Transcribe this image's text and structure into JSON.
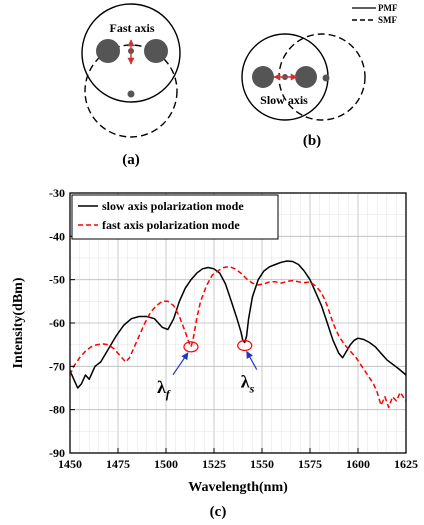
{
  "panels": {
    "a": {
      "caption": "(a)",
      "axis_label": "Fast axis"
    },
    "b": {
      "caption": "(b)",
      "axis_label": "Slow axis"
    }
  },
  "diagram_legend": [
    {
      "label": "PMF",
      "style": "solid"
    },
    {
      "label": "SMF",
      "style": "dashed"
    }
  ],
  "colors": {
    "slow": "#000000",
    "fast": "#ff0000",
    "arrow": "#cc3333",
    "core": "#555555",
    "annotation": "#2233cc"
  },
  "chart_data": {
    "type": "line",
    "caption": "(c)",
    "xlabel": "Wavelength(nm)",
    "ylabel": "Intensity(dBm)",
    "xlim": [
      1450,
      1625
    ],
    "ylim": [
      -90,
      -30
    ],
    "xticks": [
      1450,
      1475,
      1500,
      1525,
      1550,
      1575,
      1600,
      1625
    ],
    "yticks": [
      -90,
      -80,
      -70,
      -60,
      -50,
      -40,
      -30
    ],
    "grid": true,
    "legend_position": "top-left",
    "annotations": [
      {
        "label_main": "λ",
        "label_sub": "f",
        "x": 1513,
        "y": -65.5
      },
      {
        "label_main": "λ",
        "label_sub": "s",
        "x": 1541,
        "y": -65.2
      }
    ],
    "series": [
      {
        "name": "slow axis polarization mode",
        "style": "solid",
        "color": "#000000",
        "x": [
          1450,
          1452,
          1454,
          1456,
          1458,
          1460,
          1463,
          1466,
          1470,
          1474,
          1478,
          1482,
          1486,
          1490,
          1494,
          1498,
          1501,
          1504,
          1507,
          1510,
          1513,
          1516,
          1519,
          1522,
          1525,
          1528,
          1531,
          1534,
          1537,
          1539,
          1540,
          1541,
          1542,
          1543,
          1545,
          1548,
          1551,
          1554,
          1557,
          1560,
          1563,
          1566,
          1569,
          1572,
          1575,
          1578,
          1581,
          1584,
          1587,
          1590,
          1592,
          1594,
          1596,
          1598,
          1600,
          1603,
          1606,
          1609,
          1612,
          1615,
          1618,
          1621,
          1625
        ],
        "y": [
          -71,
          -73,
          -75,
          -74,
          -72,
          -73,
          -70,
          -69,
          -66,
          -63,
          -60.5,
          -59,
          -58.5,
          -58.5,
          -59,
          -61,
          -61.5,
          -59,
          -55,
          -52,
          -50,
          -48.5,
          -47.5,
          -47.2,
          -47.5,
          -48.5,
          -51,
          -55,
          -59,
          -62,
          -64,
          -64.5,
          -63,
          -59,
          -54,
          -50,
          -48,
          -47,
          -46.5,
          -46,
          -45.7,
          -45.8,
          -46.5,
          -48,
          -50,
          -53,
          -56,
          -60,
          -64,
          -67,
          -68,
          -66.5,
          -65,
          -64,
          -63.5,
          -63.8,
          -64.5,
          -65.5,
          -67,
          -68.5,
          -69.5,
          -70.5,
          -72
        ]
      },
      {
        "name": "fast axis polarization mode",
        "style": "dashed",
        "color": "#ff0000",
        "x": [
          1450,
          1452,
          1455,
          1458,
          1461,
          1464,
          1467,
          1470,
          1473,
          1476,
          1479,
          1481,
          1483,
          1486,
          1489,
          1492,
          1495,
          1498,
          1501,
          1504,
          1507,
          1510,
          1512,
          1513,
          1514,
          1516,
          1518,
          1521,
          1524,
          1527,
          1530,
          1533,
          1536,
          1539,
          1542,
          1545,
          1548,
          1551,
          1554,
          1557,
          1560,
          1563,
          1566,
          1569,
          1572,
          1575,
          1578,
          1581,
          1584,
          1587,
          1590,
          1593,
          1596,
          1599,
          1602,
          1605,
          1608,
          1610,
          1612,
          1614,
          1616,
          1618,
          1620,
          1622,
          1625
        ],
        "y": [
          -72,
          -70,
          -68,
          -66.5,
          -65.5,
          -65,
          -64.8,
          -65,
          -66,
          -67.5,
          -69,
          -68,
          -66,
          -63,
          -60,
          -57.5,
          -56,
          -55,
          -55,
          -56,
          -58.5,
          -62,
          -64.5,
          -65.5,
          -64,
          -59,
          -55,
          -51.5,
          -49,
          -48,
          -47.2,
          -47,
          -47.5,
          -48.5,
          -49.8,
          -50.8,
          -51.2,
          -51,
          -50.5,
          -50.5,
          -50.8,
          -50.4,
          -50.2,
          -50.5,
          -50.7,
          -50.5,
          -51.5,
          -53,
          -56,
          -60,
          -63,
          -65,
          -66.5,
          -68,
          -70,
          -72,
          -74,
          -76,
          -79,
          -77,
          -79.5,
          -77,
          -78,
          -76,
          -78
        ]
      }
    ]
  }
}
